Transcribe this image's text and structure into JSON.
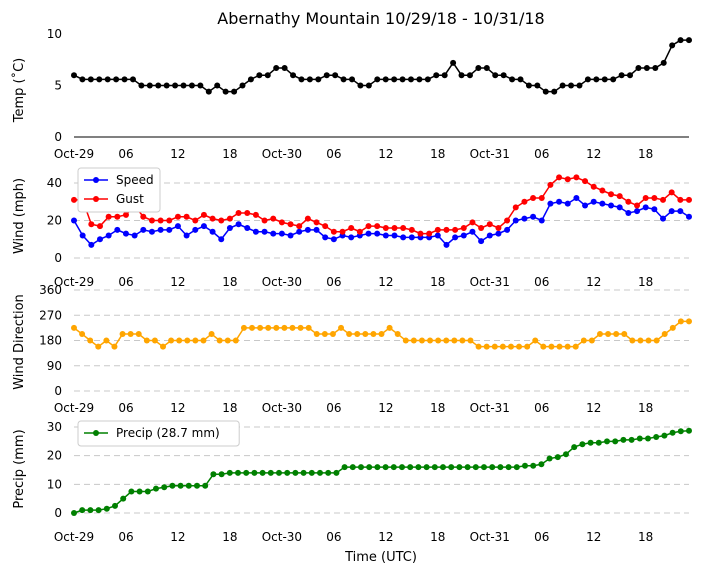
{
  "chart_data": {
    "title": "Abernathy Mountain 10/29/18 - 10/31/18",
    "xlabel": "Time (UTC)",
    "x_tick_labels": [
      "Oct-29",
      "06",
      "12",
      "18",
      "Oct-30",
      "06",
      "12",
      "18",
      "Oct-31",
      "06",
      "12",
      "18"
    ],
    "x_tick_hours": [
      0,
      6,
      12,
      18,
      24,
      30,
      36,
      42,
      48,
      54,
      60,
      66
    ],
    "x_range_hours": [
      0,
      71
    ],
    "panels": [
      {
        "type": "line",
        "ylabel": "Temp (˚C)",
        "ylim": [
          0,
          10
        ],
        "yticks": [
          0,
          5,
          10
        ],
        "grid": false,
        "legend": null,
        "series": [
          {
            "name": "Temp",
            "color": "#000000",
            "values": [
              6,
              5.6,
              5.6,
              5.6,
              5.6,
              5.6,
              5.6,
              5.6,
              5,
              5,
              5,
              5,
              5,
              5,
              5,
              5,
              4.4,
              5,
              4.4,
              4.4,
              5,
              5.6,
              6,
              6,
              6.7,
              6.7,
              6,
              5.6,
              5.6,
              5.6,
              6,
              6,
              5.6,
              5.6,
              5,
              5,
              5.6,
              5.6,
              5.6,
              5.6,
              5.6,
              5.6,
              5.6,
              6,
              6,
              7.2,
              6,
              6,
              6.7,
              6.7,
              6,
              6,
              5.6,
              5.6,
              5,
              5,
              4.4,
              4.4,
              5,
              5,
              5,
              5.6,
              5.6,
              5.6,
              5.6,
              6,
              6,
              6.7,
              6.7,
              6.7,
              7.2,
              8.9,
              9.4,
              9.4
            ]
          }
        ]
      },
      {
        "type": "line",
        "ylabel": "Wind (mph)",
        "ylim": [
          0,
          48
        ],
        "yticks": [
          0,
          20,
          40
        ],
        "grid": true,
        "legend": "upper-left",
        "series": [
          {
            "name": "Speed",
            "color": "#0000ff",
            "values": [
              20,
              12,
              7,
              10,
              12,
              15,
              13,
              12,
              15,
              14,
              15,
              15,
              17,
              12,
              15,
              17,
              14,
              10,
              16,
              18,
              16,
              14,
              14,
              13,
              13,
              12,
              14,
              15,
              15,
              11,
              10,
              12,
              11,
              12,
              13,
              13,
              12,
              12,
              11,
              11,
              11,
              11,
              12,
              7,
              11,
              12,
              14,
              9,
              12,
              13,
              15,
              20,
              21,
              22,
              20,
              29,
              30,
              29,
              32,
              28,
              30,
              29,
              28,
              27,
              24,
              25,
              27,
              26,
              21,
              25,
              25,
              22
            ]
          },
          {
            "name": "Gust",
            "color": "#ff0000",
            "values": [
              31,
              31,
              18,
              17,
              22,
              22,
              23,
              28,
              22,
              20,
              20,
              20,
              22,
              22,
              20,
              23,
              21,
              20,
              21,
              24,
              24,
              23,
              20,
              21,
              19,
              18,
              17,
              21,
              19,
              17,
              14,
              14,
              16,
              14,
              17,
              17,
              16,
              16,
              16,
              15,
              13,
              13,
              15,
              15,
              15,
              16,
              19,
              16,
              18,
              16,
              20,
              27,
              30,
              32,
              32,
              39,
              43,
              42,
              43,
              41,
              38,
              36,
              34,
              33,
              30,
              28,
              32,
              32,
              31,
              35,
              31,
              31
            ]
          }
        ]
      },
      {
        "type": "line",
        "ylabel": "Wind Direction",
        "ylim": [
          0,
          360
        ],
        "yticks": [
          0,
          90,
          180,
          270,
          360
        ],
        "grid": true,
        "legend": null,
        "series": [
          {
            "name": "Wind Direction",
            "color": "#ffa500",
            "values": [
              225,
              203,
              180,
              158,
              180,
              158,
              203,
              203,
              203,
              180,
              180,
              158,
              180,
              180,
              180,
              180,
              180,
              203,
              180,
              180,
              180,
              225,
              225,
              225,
              225,
              225,
              225,
              225,
              225,
              225,
              203,
              203,
              203,
              225,
              203,
              203,
              203,
              203,
              203,
              225,
              203,
              180,
              180,
              180,
              180,
              180,
              180,
              180,
              180,
              180,
              158,
              158,
              158,
              158,
              158,
              158,
              158,
              180,
              158,
              158,
              158,
              158,
              158,
              180,
              180,
              203,
              203,
              203,
              203,
              180,
              180,
              180,
              180,
              203,
              225,
              248,
              248
            ]
          }
        ]
      },
      {
        "type": "line",
        "ylabel": "Precip (mm)",
        "ylim": [
          0,
          30
        ],
        "yticks": [
          0,
          10,
          20,
          30
        ],
        "grid": true,
        "legend": "upper-left",
        "series": [
          {
            "name": "Precip (28.7 mm)",
            "color": "#008000",
            "values": [
              0,
              1,
              1,
              1,
              1.5,
              2.5,
              5,
              7.5,
              7.5,
              7.5,
              8.5,
              9,
              9.5,
              9.5,
              9.5,
              9.5,
              9.5,
              13.5,
              13.5,
              14,
              14,
              14,
              14,
              14,
              14,
              14,
              14,
              14,
              14,
              14,
              14,
              14,
              14,
              16,
              16,
              16,
              16,
              16,
              16,
              16,
              16,
              16,
              16,
              16,
              16,
              16,
              16,
              16,
              16,
              16,
              16,
              16,
              16,
              16,
              16,
              16.5,
              16.5,
              17,
              19,
              19.5,
              20.5,
              23,
              24,
              24.5,
              24.5,
              25,
              25,
              25.5,
              25.5,
              26,
              26,
              26.5,
              27,
              28,
              28.5,
              28.7
            ]
          }
        ]
      }
    ]
  }
}
